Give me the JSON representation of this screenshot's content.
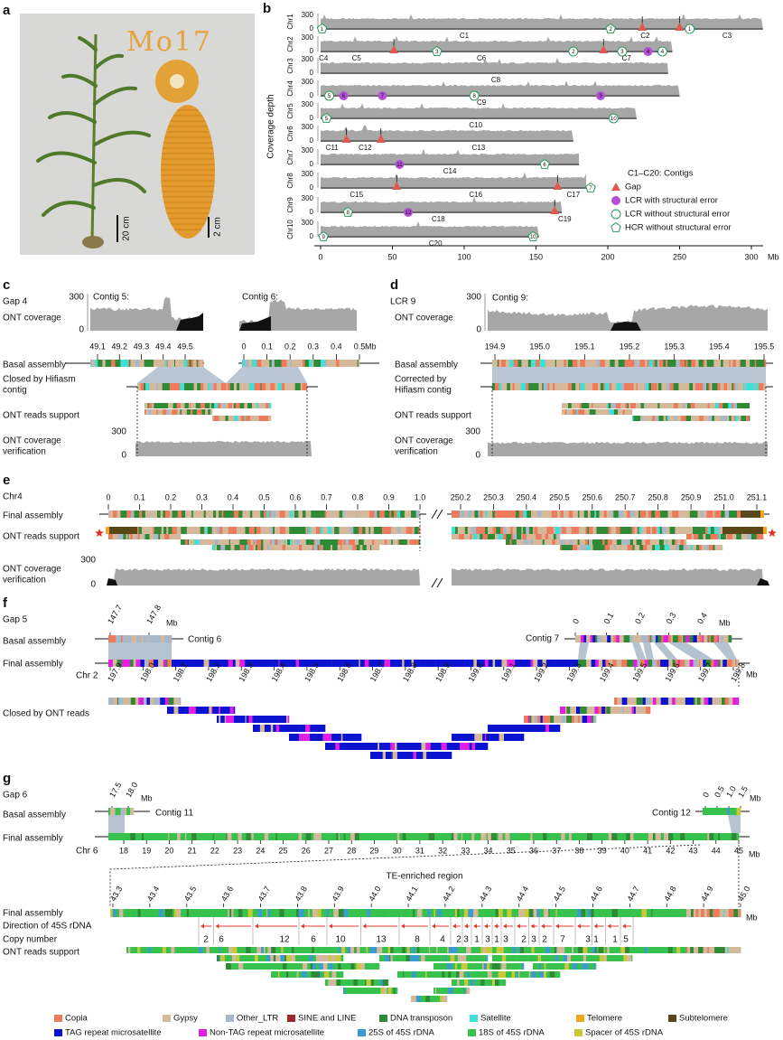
{
  "panel_a": {
    "label": "a",
    "title": "Mo17",
    "plant_scale": "20 cm",
    "ear_scale": "2 cm"
  },
  "panel_b": {
    "label": "b",
    "y_axis_label": "Coverage depth",
    "depth_ticks": [
      "300",
      "0"
    ],
    "xticks": [
      0,
      50,
      100,
      150,
      200,
      250,
      300
    ],
    "x_unit": "Mb",
    "chromosomes": [
      {
        "name": "Chr1",
        "length": 308,
        "contigs": [
          {
            "label": "C1",
            "pos": 100
          },
          {
            "label": "C2",
            "pos": 226
          },
          {
            "label": "C3",
            "pos": 283
          }
        ],
        "markers": [
          {
            "type": "hcr_ok",
            "label": "1",
            "pos": 1
          },
          {
            "type": "hcr_ok",
            "label": "2",
            "pos": 202
          },
          {
            "type": "gap",
            "pos": 224
          },
          {
            "type": "gap",
            "pos": 250
          },
          {
            "type": "lcr_ok",
            "label": "1",
            "pos": 257
          }
        ]
      },
      {
        "name": "Chr2",
        "length": 245,
        "contigs": [
          {
            "label": "C4",
            "pos": 2
          },
          {
            "label": "C5",
            "pos": 25
          },
          {
            "label": "C6",
            "pos": 112
          },
          {
            "label": "C7",
            "pos": 213
          }
        ],
        "markers": [
          {
            "type": "gap",
            "pos": 51
          },
          {
            "type": "hcr_ok",
            "label": "3",
            "pos": 81
          },
          {
            "type": "lcr_ok",
            "label": "2",
            "pos": 176
          },
          {
            "type": "gap",
            "pos": 197
          },
          {
            "type": "lcr_ok",
            "label": "3",
            "pos": 210
          },
          {
            "type": "lcr_err",
            "label": "4",
            "pos": 228
          },
          {
            "type": "lcr_ok",
            "label": "4",
            "pos": 238
          }
        ]
      },
      {
        "name": "Chr3",
        "length": 242,
        "contigs": [
          {
            "label": "C8",
            "pos": 122
          }
        ],
        "markers": []
      },
      {
        "name": "Chr4",
        "length": 250,
        "contigs": [
          {
            "label": "C9",
            "pos": 112
          }
        ],
        "markers": [
          {
            "type": "lcr_ok",
            "label": "5",
            "pos": 6
          },
          {
            "type": "lcr_err",
            "label": "6",
            "pos": 16
          },
          {
            "type": "lcr_err",
            "label": "7",
            "pos": 43
          },
          {
            "type": "lcr_ok",
            "label": "8",
            "pos": 107
          },
          {
            "type": "lcr_err",
            "label": "9",
            "pos": 195
          }
        ]
      },
      {
        "name": "Chr5",
        "length": 220,
        "contigs": [
          {
            "label": "C10",
            "pos": 108
          }
        ],
        "markers": [
          {
            "type": "hcr_ok",
            "label": "5",
            "pos": 4
          },
          {
            "type": "lcr_ok",
            "label": "10",
            "pos": 204
          }
        ]
      },
      {
        "name": "Chr6",
        "length": 176,
        "contigs": [
          {
            "label": "C11",
            "pos": 8
          },
          {
            "label": "C12",
            "pos": 31
          },
          {
            "label": "C13",
            "pos": 110
          }
        ],
        "markers": [
          {
            "type": "gap",
            "pos": 18
          },
          {
            "type": "gap",
            "pos": 42
          }
        ]
      },
      {
        "name": "Chr7",
        "length": 180,
        "contigs": [
          {
            "label": "C14",
            "pos": 90
          }
        ],
        "markers": [
          {
            "type": "lcr_err",
            "label": "11",
            "pos": 55
          },
          {
            "type": "hcr_ok",
            "label": "6",
            "pos": 156
          }
        ]
      },
      {
        "name": "Chr8",
        "length": 185,
        "contigs": [
          {
            "label": "C15",
            "pos": 25
          },
          {
            "label": "C16",
            "pos": 108
          },
          {
            "label": "C17",
            "pos": 176
          }
        ],
        "markers": [
          {
            "type": "gap",
            "pos": 53
          },
          {
            "type": "gap",
            "pos": 165
          },
          {
            "type": "hcr_ok",
            "label": "7",
            "pos": 188
          }
        ]
      },
      {
        "name": "Chr9",
        "length": 168,
        "contigs": [
          {
            "label": "C18",
            "pos": 82
          },
          {
            "label": "C19",
            "pos": 170
          }
        ],
        "markers": [
          {
            "type": "hcr_ok",
            "label": "8",
            "pos": 19
          },
          {
            "type": "lcr_err",
            "label": "12",
            "pos": 61
          },
          {
            "type": "gap",
            "pos": 163
          }
        ]
      },
      {
        "name": "Chr10",
        "length": 152,
        "contigs": [
          {
            "label": "C20",
            "pos": 80
          }
        ],
        "markers": [
          {
            "type": "hcr_ok",
            "label": "9",
            "pos": 2
          },
          {
            "type": "hcr_ok",
            "label": "10",
            "pos": 148
          }
        ]
      }
    ],
    "legend": {
      "contigs": "C1–C20: Contigs",
      "gap": "Gap",
      "lcr_err": "LCR with structural error",
      "lcr_ok": "LCR without structural error",
      "hcr_ok": "HCR without structural error"
    }
  },
  "panel_c": {
    "label": "c",
    "region": "Gap 4",
    "coverage_label": "ONT coverage",
    "coverage_ticks": [
      "300",
      "0"
    ],
    "contigs": [
      "Contig 5:",
      "Contig 6:"
    ],
    "ticks_left": [
      "49.1",
      "49.2",
      "49.3",
      "49.4",
      "49.5"
    ],
    "ticks_right": [
      "0",
      "0.1",
      "0.2",
      "0.3",
      "0.4",
      "0.5"
    ],
    "unit": "Mb",
    "rows": [
      [
        "Basal assembly"
      ],
      [
        "Closed by Hifiasm",
        "contig"
      ],
      [
        "ONT reads support"
      ],
      [
        "ONT coverage",
        "verification"
      ]
    ],
    "verification_ticks": [
      "300",
      "0"
    ]
  },
  "panel_d": {
    "label": "d",
    "region": "LCR 9",
    "coverage_label": "ONT coverage",
    "coverage_ticks": [
      "300",
      "0"
    ],
    "contig": "Contig 9:",
    "ticks": [
      "194.9",
      "195.0",
      "195.1",
      "195.2",
      "195.3",
      "195.4",
      "195.5"
    ],
    "rows": [
      [
        "Basal assembly"
      ],
      [
        "Corrected by",
        "Hifiasm contig"
      ],
      [
        "ONT reads support"
      ],
      [
        "ONT coverage",
        "verification"
      ]
    ],
    "verification_ticks": [
      "300",
      "0"
    ]
  },
  "panel_e": {
    "label": "e",
    "region": "Chr4",
    "ticks_left": [
      "0",
      "0.1",
      "0.2",
      "0.3",
      "0.4",
      "0.5",
      "0.6",
      "0.7",
      "0.8",
      "0.9",
      "1.0"
    ],
    "ticks_right": [
      "250.2",
      "250.3",
      "250.4",
      "250.5",
      "250.6",
      "250.7",
      "250.8",
      "250.9",
      "251.0",
      "251.1"
    ],
    "rows": [
      [
        "Final assembly"
      ],
      [
        "ONT reads support"
      ],
      [
        "ONT coverage",
        "verification"
      ]
    ],
    "coverage_ticks": [
      "300",
      "0"
    ]
  },
  "panel_f": {
    "label": "f",
    "region": "Gap 5",
    "ticks_top_left": [
      "147.7",
      "147.8"
    ],
    "unit": "Mb",
    "contig_left": "Contig 6",
    "contig_right": "Contig 7",
    "ticks_top_right": [
      "0",
      "0.1",
      "0.2",
      "0.3",
      "0.4"
    ],
    "rows": [
      "Basal assembly",
      "Final assembly",
      "Closed by ONT reads"
    ],
    "chromosome": "Chr 2",
    "ticks": [
      "197.9",
      "198.0",
      "198.1",
      "198.2",
      "198.3",
      "198.4",
      "198.5",
      "198.6",
      "198.7",
      "198.8",
      "198.9",
      "199.0",
      "199.1",
      "199.2",
      "199.3",
      "199.4",
      "199.5",
      "199.6",
      "199.7",
      "199.8"
    ]
  },
  "panel_g": {
    "label": "g",
    "region": "Gap 6",
    "ticks_top_left": [
      "17.5",
      "18.0"
    ],
    "unit": "Mb",
    "contig_left": "Contig 11",
    "contig_right": "Contig 12",
    "ticks_top_right": [
      "0",
      "0.5",
      "1.0",
      "1.5"
    ],
    "rows": [
      "Basal assembly",
      "Final assembly"
    ],
    "chromosome": "Chr 6",
    "ticks": [
      "18",
      "19",
      "20",
      "21",
      "22",
      "23",
      "24",
      "25",
      "26",
      "27",
      "28",
      "29",
      "30",
      "31",
      "32",
      "33",
      "34",
      "35",
      "36",
      "37",
      "38",
      "39",
      "40",
      "41",
      "42",
      "43",
      "44",
      "45"
    ],
    "region_label": "TE-enriched region",
    "zoom_ticks": [
      "43.3",
      "43.4",
      "43.5",
      "43.6",
      "43.7",
      "43.8",
      "43.9",
      "44.0",
      "44.1",
      "44.2",
      "44.3",
      "44.4",
      "44.5",
      "44.6",
      "44.7",
      "44.8",
      "44.9",
      "45.0"
    ],
    "zoom_rows": [
      "Final assembly",
      "Direction of 45S rDNA",
      "Copy number",
      "ONT reads support"
    ],
    "copy_numbers": [
      2,
      6,
      12,
      6,
      10,
      13,
      8,
      4,
      2,
      3,
      1,
      3,
      1,
      3,
      2,
      3,
      2,
      7,
      3,
      1,
      1,
      5
    ]
  },
  "legend": [
    {
      "name": "Copia",
      "color": "#ef7a5c"
    },
    {
      "name": "Gypsy",
      "color": "#d6b89a"
    },
    {
      "name": "Other_LTR",
      "color": "#a8b8c8"
    },
    {
      "name": "SINE and LINE",
      "color": "#a3262a"
    },
    {
      "name": "DNA transposon",
      "color": "#2e8a34"
    },
    {
      "name": "Satellite",
      "color": "#3fe0d6"
    },
    {
      "name": "Telomere",
      "color": "#f2a51e"
    },
    {
      "name": "Subtelomere",
      "color": "#5a4718"
    },
    {
      "name": "TAG repeat microsatellite",
      "color": "#0a14d0"
    },
    {
      "name": "Non-TAG repeat microsatellite",
      "color": "#e21ee2"
    },
    {
      "name": "25S of 45S rDNA",
      "color": "#3a9ad2"
    },
    {
      "name": "18S of 45S rDNA",
      "color": "#36c24c"
    },
    {
      "name": "Spacer of 45S rDNA",
      "color": "#c8c838"
    }
  ]
}
